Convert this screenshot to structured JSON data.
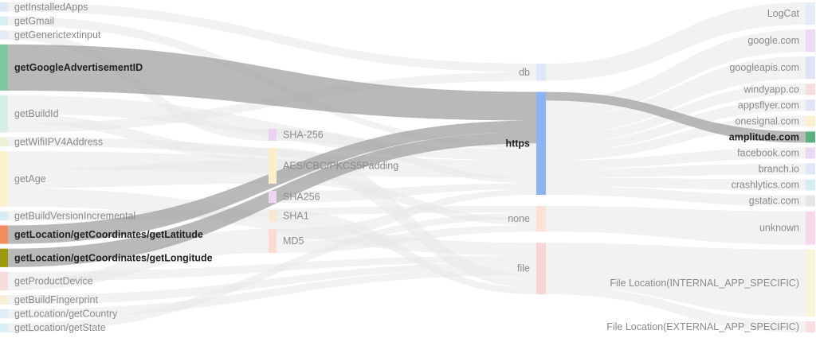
{
  "diagram": {
    "type": "sankey",
    "columns": [
      {
        "nodes": [
          {
            "id": "getInstalledApps",
            "label": "getInstalledApps",
            "color": "#dfe8f7",
            "weight": 1
          },
          {
            "id": "getGmail",
            "label": "getGmail",
            "color": "#d9eef3",
            "weight": 1
          },
          {
            "id": "getGenerictextinput",
            "label": "getGenerictextinput",
            "color": "#e4ecf7",
            "weight": 1
          },
          {
            "id": "getGoogleAdvertisementID",
            "label": "getGoogleAdvertisementID",
            "color": "#7fc9a2",
            "weight": 5,
            "highlight": true
          },
          {
            "id": "getBuildId",
            "label": "getBuildId",
            "color": "#d7efe3",
            "weight": 4
          },
          {
            "id": "getWifiIPV4Address",
            "label": "getWifiIPV4Address",
            "color": "#eef2d5",
            "weight": 1
          },
          {
            "id": "getAge",
            "label": "getAge",
            "color": "#fbf1cf",
            "weight": 6
          },
          {
            "id": "getBuildVersionIncremental",
            "label": "getBuildVersionIncremental",
            "color": "#d6ecf4",
            "weight": 1
          },
          {
            "id": "getLatitude",
            "label": "getLocation/getCoordinates/getLatitude",
            "color": "#f28b5e",
            "weight": 2,
            "highlight": true
          },
          {
            "id": "getLongitude",
            "label": "getLocation/getCoordinates/getLongitude",
            "color": "#9a9a0c",
            "weight": 2,
            "highlight": true
          },
          {
            "id": "getProductDevice",
            "label": "getProductDevice",
            "color": "#f7dcdc",
            "weight": 2
          },
          {
            "id": "getBuildFingerprint",
            "label": "getBuildFingerprint",
            "color": "#f7f0d6",
            "weight": 1
          },
          {
            "id": "getCountry",
            "label": "getLocation/getCountry",
            "color": "#e0ecf6",
            "weight": 1
          },
          {
            "id": "getState",
            "label": "getLocation/getState",
            "color": "#d9eef5",
            "weight": 1
          }
        ]
      },
      {
        "nodes": [
          {
            "id": "SHA-256",
            "label": "SHA-256",
            "color": "#ead3f1",
            "weight": 1
          },
          {
            "id": "AES",
            "label": "AES/CBC/PKCS5Padding",
            "color": "#fbefc9",
            "weight": 3
          },
          {
            "id": "SHA256",
            "label": "SHA256",
            "color": "#ecd7f1",
            "weight": 1
          },
          {
            "id": "SHA1",
            "label": "SHA1",
            "color": "#f7e8d4",
            "weight": 1
          },
          {
            "id": "MD5",
            "label": "MD5",
            "color": "#f9ddd2",
            "weight": 2
          }
        ]
      },
      {
        "nodes": [
          {
            "id": "db",
            "label": "db",
            "color": "#dde7fb",
            "weight": 2
          },
          {
            "id": "https",
            "label": "https",
            "color": "#8fb1f5",
            "weight": 12,
            "highlight": true
          },
          {
            "id": "none",
            "label": "none",
            "color": "#fbe1d6",
            "weight": 3
          },
          {
            "id": "file",
            "label": "file",
            "color": "#f7d6d6",
            "weight": 6
          }
        ]
      },
      {
        "nodes": [
          {
            "id": "LogCat",
            "label": "LogCat",
            "color": "#e4ecfa",
            "weight": 2
          },
          {
            "id": "google.com",
            "label": "google.com",
            "color": "#eedaf6",
            "weight": 2
          },
          {
            "id": "googleapis.com",
            "label": "googleapis.com",
            "color": "#dfe3f6",
            "weight": 2
          },
          {
            "id": "windyapp.co",
            "label": "windyapp.co",
            "color": "#f7dcdc",
            "weight": 1
          },
          {
            "id": "appsflyer.com",
            "label": "appsflyer.com",
            "color": "#e1e4f6",
            "weight": 1
          },
          {
            "id": "onesignal.com",
            "label": "onesignal.com",
            "color": "#fbf0d0",
            "weight": 1
          },
          {
            "id": "amplitude.com",
            "label": "amplitude.com",
            "color": "#5bb07c",
            "weight": 1,
            "highlight": true
          },
          {
            "id": "facebook.com",
            "label": "facebook.com",
            "color": "#ebd9f4",
            "weight": 1
          },
          {
            "id": "branch.io",
            "label": "branch.io",
            "color": "#e0e7f8",
            "weight": 1
          },
          {
            "id": "crashlytics.com",
            "label": "crashlytics.com",
            "color": "#d6ecf3",
            "weight": 1
          },
          {
            "id": "gstatic.com",
            "label": "gstatic.com",
            "color": "#e6e6e6",
            "weight": 1
          },
          {
            "id": "unknown",
            "label": "unknown",
            "color": "#f7d9ee",
            "weight": 3
          },
          {
            "id": "internal",
            "label": "File Location(INTERNAL_APP_SPECIFIC)",
            "color": "#f9f3d8",
            "weight": 6
          },
          {
            "id": "external",
            "label": "File Location(EXTERNAL_APP_SPECIFIC)",
            "color": "#f9dfe3",
            "weight": 1
          }
        ]
      }
    ],
    "links": [
      {
        "source": "getGoogleAdvertisementID",
        "target": "https",
        "value": 5,
        "highlight": true
      },
      {
        "source": "getLatitude",
        "target": "https",
        "value": 2,
        "highlight": true
      },
      {
        "source": "getLongitude",
        "target": "https",
        "value": 2,
        "highlight": true
      },
      {
        "source": "https",
        "target": "amplitude.com",
        "value": 1,
        "highlight": true
      },
      {
        "source": "getInstalledApps",
        "target": "db",
        "value": 1
      },
      {
        "source": "getGmail",
        "target": "https",
        "value": 1
      },
      {
        "source": "getGenerictextinput",
        "target": "SHA-256",
        "value": 1
      },
      {
        "source": "getBuildId",
        "target": "https",
        "value": 2
      },
      {
        "source": "getBuildId",
        "target": "AES",
        "value": 1
      },
      {
        "source": "getBuildId",
        "target": "db",
        "value": 1
      },
      {
        "source": "getWifiIPV4Address",
        "target": "https",
        "value": 1
      },
      {
        "source": "getAge",
        "target": "https",
        "value": 2
      },
      {
        "source": "getAge",
        "target": "AES",
        "value": 2
      },
      {
        "source": "getAge",
        "target": "file",
        "value": 2
      },
      {
        "source": "getBuildVersionIncremental",
        "target": "none",
        "value": 1
      },
      {
        "source": "getProductDevice",
        "target": "file",
        "value": 1
      },
      {
        "source": "getProductDevice",
        "target": "MD5",
        "value": 1
      },
      {
        "source": "getBuildFingerprint",
        "target": "file",
        "value": 1
      },
      {
        "source": "getCountry",
        "target": "file",
        "value": 1
      },
      {
        "source": "getState",
        "target": "none",
        "value": 1
      },
      {
        "source": "SHA-256",
        "target": "https",
        "value": 1
      },
      {
        "source": "AES",
        "target": "file",
        "value": 2
      },
      {
        "source": "AES",
        "target": "none",
        "value": 1
      },
      {
        "source": "SHA256",
        "target": "https",
        "value": 1
      },
      {
        "source": "SHA1",
        "target": "file",
        "value": 1
      },
      {
        "source": "MD5",
        "target": "https",
        "value": 1
      },
      {
        "source": "MD5",
        "target": "none",
        "value": 1
      },
      {
        "source": "db",
        "target": "LogCat",
        "value": 2
      },
      {
        "source": "https",
        "target": "google.com",
        "value": 2
      },
      {
        "source": "https",
        "target": "googleapis.com",
        "value": 2
      },
      {
        "source": "https",
        "target": "windyapp.co",
        "value": 1
      },
      {
        "source": "https",
        "target": "appsflyer.com",
        "value": 1
      },
      {
        "source": "https",
        "target": "onesignal.com",
        "value": 1
      },
      {
        "source": "https",
        "target": "facebook.com",
        "value": 1
      },
      {
        "source": "https",
        "target": "branch.io",
        "value": 1
      },
      {
        "source": "https",
        "target": "crashlytics.com",
        "value": 1
      },
      {
        "source": "https",
        "target": "gstatic.com",
        "value": 1
      },
      {
        "source": "none",
        "target": "unknown",
        "value": 3
      },
      {
        "source": "file",
        "target": "internal",
        "value": 5
      },
      {
        "source": "file",
        "target": "external",
        "value": 1
      }
    ]
  }
}
